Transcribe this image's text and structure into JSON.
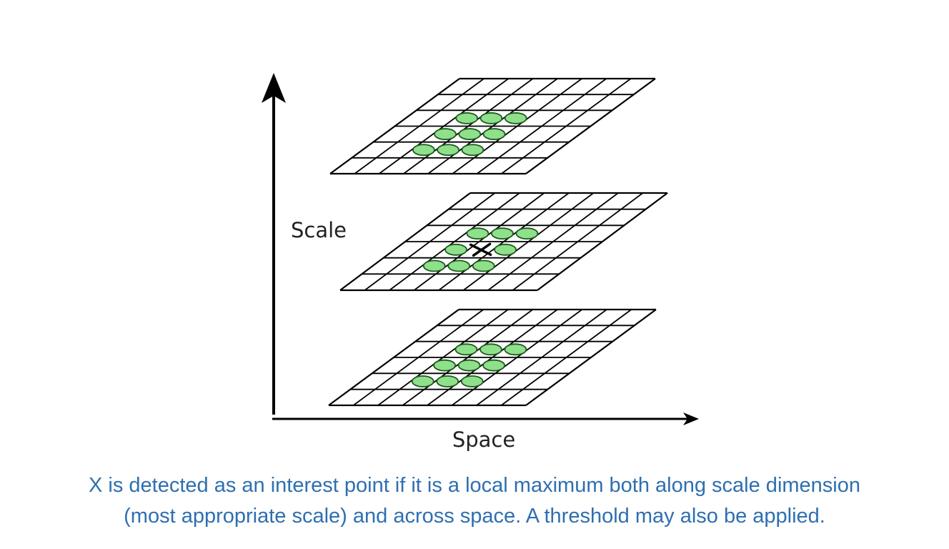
{
  "colors": {
    "grid_line": "#000000",
    "point_fill": "#8fe08a",
    "point_stroke": "#1f5a1f",
    "axis": "#000000",
    "caption_text": "#2e6fb0"
  },
  "axes": {
    "vertical_label": "Scale",
    "horizontal_label": "Space"
  },
  "grid": {
    "columns": 8,
    "rows": 6
  },
  "layers": [
    {
      "name": "upper-scale",
      "neighbor_points": 8,
      "has_center_marker": false
    },
    {
      "name": "middle-scale",
      "neighbor_points": 8,
      "has_center_marker": true,
      "center_marker": "X"
    },
    {
      "name": "lower-scale",
      "neighbor_points": 8,
      "has_center_marker": false
    }
  ],
  "caption": {
    "line1": "X is detected as an interest point if it is a local maximum both along scale dimension",
    "line2": "(most appropriate scale) and across space. A threshold may also be applied."
  }
}
